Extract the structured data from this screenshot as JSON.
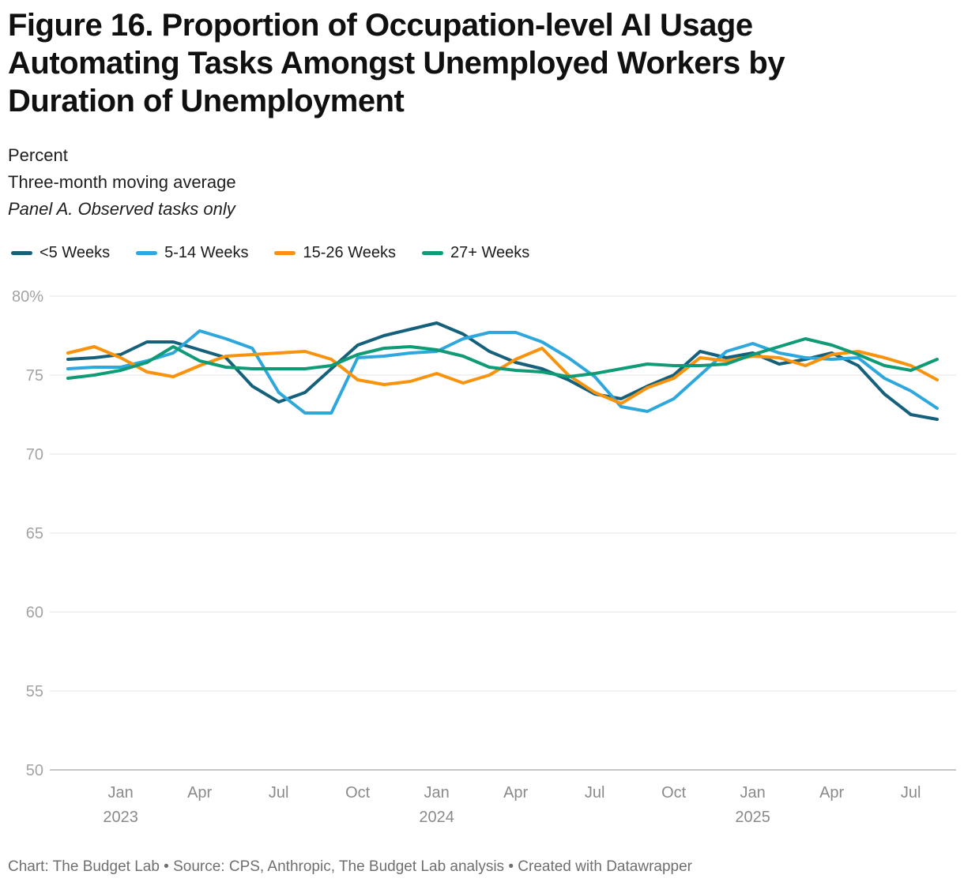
{
  "header": {
    "title_lines": [
      "Figure 16. Proportion of Occupation-level AI Usage",
      "Automating Tasks Amongst Unemployed Workers by",
      "Duration of Unemployment"
    ],
    "subtitle_line1": "Percent",
    "subtitle_line2": "Three-month moving average",
    "subtitle_line3": "Panel A. Observed tasks only"
  },
  "footer": {
    "text": "Chart: The Budget Lab • Source: CPS, Anthropic, The Budget Lab analysis • Created with Datawrapper"
  },
  "colors": {
    "under5": "#15607a",
    "w5to14": "#2ea8dc",
    "w15to26": "#f9920d",
    "w27plus": "#0f9b75",
    "grid": "#e3e3e3",
    "baseline": "#b3b3b3",
    "y_label": "#a3a3a3",
    "x_label": "#8a8a8a"
  },
  "chart_data": {
    "type": "line",
    "title": "Figure 16. Proportion of Occupation-level AI Usage Automating Tasks Amongst Unemployed Workers by Duration of Unemployment",
    "subtitle": "Percent, Three-month moving average — Panel A. Observed tasks only",
    "ylabel": "Percent",
    "ylim": [
      50,
      80
    ],
    "grid": true,
    "legend_position": "top",
    "y_ticks": [
      80,
      75,
      70,
      65,
      60,
      55,
      50
    ],
    "y_top_tick_label": "80%",
    "months": [
      "Nov 2022",
      "Dec 2022",
      "Jan 2023",
      "Feb 2023",
      "Mar 2023",
      "Apr 2023",
      "May 2023",
      "Jun 2023",
      "Jul 2023",
      "Aug 2023",
      "Sep 2023",
      "Oct 2023",
      "Nov 2023",
      "Dec 2023",
      "Jan 2024",
      "Feb 2024",
      "Mar 2024",
      "Apr 2024",
      "May 2024",
      "Jun 2024",
      "Jul 2024",
      "Aug 2024",
      "Sep 2024",
      "Oct 2024",
      "Nov 2024",
      "Dec 2024",
      "Jan 2025",
      "Feb 2025",
      "Mar 2025",
      "Apr 2025",
      "May 2025",
      "Jun 2025",
      "Jul 2025",
      "Aug 2025"
    ],
    "x_ticks": [
      {
        "month": "Jan",
        "year": "2023",
        "index": 2
      },
      {
        "month": "Apr",
        "year": "",
        "index": 5
      },
      {
        "month": "Jul",
        "year": "",
        "index": 8
      },
      {
        "month": "Oct",
        "year": "",
        "index": 11
      },
      {
        "month": "Jan",
        "year": "2024",
        "index": 14
      },
      {
        "month": "Apr",
        "year": "",
        "index": 17
      },
      {
        "month": "Jul",
        "year": "",
        "index": 20
      },
      {
        "month": "Oct",
        "year": "",
        "index": 23
      },
      {
        "month": "Jan",
        "year": "2025",
        "index": 26
      },
      {
        "month": "Apr",
        "year": "",
        "index": 29
      },
      {
        "month": "Jul",
        "year": "",
        "index": 32
      }
    ],
    "series": [
      {
        "name": "<5 Weeks",
        "color_key": "under5",
        "values": [
          76.0,
          76.1,
          76.3,
          77.1,
          77.1,
          76.6,
          76.1,
          74.3,
          73.3,
          73.9,
          75.4,
          76.9,
          77.5,
          77.9,
          78.3,
          77.6,
          76.5,
          75.8,
          75.4,
          74.7,
          73.8,
          73.5,
          74.3,
          75.0,
          76.5,
          76.1,
          76.4,
          75.7,
          76.0,
          76.4,
          75.6,
          73.8,
          72.5,
          72.2
        ]
      },
      {
        "name": "5-14 Weeks",
        "color_key": "w5to14",
        "values": [
          75.4,
          75.5,
          75.5,
          75.9,
          76.4,
          77.8,
          77.3,
          76.7,
          73.9,
          72.6,
          72.6,
          76.1,
          76.2,
          76.4,
          76.5,
          77.3,
          77.7,
          77.7,
          77.1,
          76.1,
          74.9,
          73.0,
          72.7,
          73.5,
          75.0,
          76.5,
          77.0,
          76.4,
          76.1,
          76.0,
          76.1,
          74.8,
          74.0,
          72.9
        ]
      },
      {
        "name": "15-26 Weeks",
        "color_key": "w15to26",
        "values": [
          76.4,
          76.8,
          76.1,
          75.2,
          74.9,
          75.6,
          76.2,
          76.3,
          76.4,
          76.5,
          76.0,
          74.7,
          74.4,
          74.6,
          75.1,
          74.5,
          75.0,
          76.0,
          76.7,
          75.0,
          73.9,
          73.2,
          74.2,
          74.8,
          76.1,
          75.9,
          76.2,
          76.1,
          75.6,
          76.3,
          76.5,
          76.1,
          75.6,
          74.7
        ]
      },
      {
        "name": "27+ Weeks",
        "color_key": "w27plus",
        "values": [
          74.8,
          75.0,
          75.3,
          75.8,
          76.8,
          75.9,
          75.5,
          75.4,
          75.4,
          75.4,
          75.6,
          76.3,
          76.7,
          76.8,
          76.6,
          76.2,
          75.5,
          75.3,
          75.2,
          74.9,
          75.1,
          75.4,
          75.7,
          75.6,
          75.6,
          75.7,
          76.3,
          76.8,
          77.3,
          76.9,
          76.3,
          75.6,
          75.3,
          76.0
        ]
      }
    ]
  }
}
